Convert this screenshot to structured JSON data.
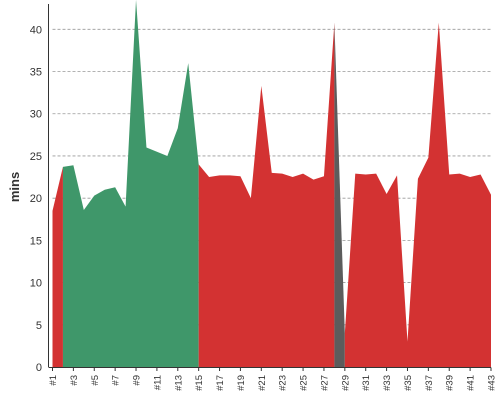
{
  "chart_data": {
    "type": "area",
    "title": "",
    "xlabel": "",
    "ylabel": "mins",
    "ylim": [
      0,
      43
    ],
    "yticks": [
      0,
      5,
      10,
      15,
      20,
      25,
      30,
      35,
      40
    ],
    "grid": "horizontal-dashed",
    "categories": [
      "#1",
      "#2",
      "#3",
      "#4",
      "#5",
      "#6",
      "#7",
      "#8",
      "#9",
      "#10",
      "#11",
      "#12",
      "#13",
      "#14",
      "#15",
      "#16",
      "#17",
      "#18",
      "#19",
      "#20",
      "#21",
      "#22",
      "#23",
      "#24",
      "#25",
      "#26",
      "#27",
      "#28",
      "#29",
      "#30",
      "#31",
      "#32",
      "#33",
      "#34",
      "#35",
      "#36",
      "#37",
      "#38",
      "#39",
      "#40",
      "#41",
      "#42",
      "#43"
    ],
    "x_tick_labels": [
      "#1",
      "#3",
      "#5",
      "#7",
      "#9",
      "#11",
      "#13",
      "#15",
      "#17",
      "#19",
      "#21",
      "#23",
      "#25",
      "#27",
      "#29",
      "#31",
      "#33",
      "#35",
      "#37",
      "#39",
      "#41",
      "#43"
    ],
    "values": [
      18.5,
      23.7,
      23.9,
      18.6,
      20.3,
      21.0,
      21.3,
      19.0,
      43.5,
      26.0,
      25.5,
      25.0,
      28.3,
      36.0,
      24.0,
      22.5,
      22.7,
      22.7,
      22.6,
      20.0,
      33.3,
      23.0,
      22.9,
      22.5,
      22.9,
      22.2,
      22.6,
      40.8,
      4.0,
      22.9,
      22.8,
      22.9,
      20.5,
      22.7,
      3.0,
      22.3,
      24.8,
      40.8,
      22.8,
      22.9,
      22.5,
      22.8,
      20.4
    ],
    "segments": [
      {
        "from": 1,
        "to": 2,
        "color": "#d33232"
      },
      {
        "from": 2,
        "to": 15,
        "color": "#3f976a"
      },
      {
        "from": 15,
        "to": 28,
        "color": "#d33232"
      },
      {
        "from": 28,
        "to": 29,
        "color": "#5c5c5c"
      },
      {
        "from": 29,
        "to": 43,
        "color": "#d33232"
      }
    ],
    "colors": {
      "red": "#d33232",
      "green": "#3f976a",
      "gray": "#5c5c5c",
      "grid": "#999999",
      "axis": "#333333"
    }
  }
}
